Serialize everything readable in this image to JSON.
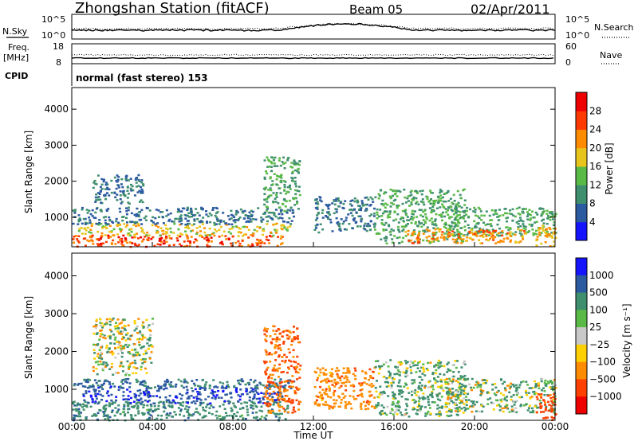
{
  "header": {
    "station": "Zhongshan Station (fitACF)",
    "beam": "Beam 05",
    "date": "02/Apr/2011"
  },
  "top_panels": {
    "nsky_label": "N.Sky",
    "nsky_ticks": [
      "10^5",
      "10^0"
    ],
    "nsearch_label": "N.Search",
    "nsearch_ticks": [
      "10^5",
      "10^0"
    ],
    "freq_label": "Freq.",
    "freq_unit": "[MHz]",
    "freq_ticks": [
      "18",
      "8"
    ],
    "nave_label": "Nave",
    "nave_ticks": [
      "60",
      "0"
    ],
    "cpid_label": "CPID",
    "cpid_text": "normal (fast stereo) 153"
  },
  "chart_data": [
    {
      "type": "heatmap",
      "name": "power",
      "ylabel": "Slant Range [km]",
      "colorbar_label": "Power [dB]",
      "yticks": [
        "4000",
        "3000",
        "2000",
        "1000"
      ],
      "ylim": [
        180,
        4600
      ],
      "xticks": [
        "00:00",
        "04:00",
        "08:00",
        "12:00",
        "16:00",
        "20:00",
        "00:00"
      ],
      "xlim_hours": [
        0,
        24
      ],
      "colorbar_ticks": [
        "28",
        "24",
        "20",
        "16",
        "12",
        "8",
        "4"
      ],
      "colorbar_range": [
        0,
        32
      ],
      "colors": [
        "#1414ff",
        "#2c5aa0",
        "#3f8f6f",
        "#5aba46",
        "#e8c51c",
        "#ff8c00",
        "#ff3a00",
        "#ee0000"
      ],
      "echo_regions": [
        {
          "x0": 0.0,
          "x1": 10.5,
          "y0": 200,
          "y1": 520,
          "v": 26
        },
        {
          "x0": 0.3,
          "x1": 10.8,
          "y0": 500,
          "y1": 850,
          "v": 18
        },
        {
          "x0": 0.0,
          "x1": 11.0,
          "y0": 820,
          "y1": 1300,
          "v": 8
        },
        {
          "x0": 1.0,
          "x1": 3.5,
          "y0": 1400,
          "y1": 2200,
          "v": 8
        },
        {
          "x0": 9.5,
          "x1": 11.3,
          "y0": 1200,
          "y1": 2700,
          "v": 12
        },
        {
          "x0": 12.0,
          "x1": 15.0,
          "y0": 600,
          "y1": 1600,
          "v": 8
        },
        {
          "x0": 15.0,
          "x1": 19.5,
          "y0": 300,
          "y1": 1800,
          "v": 12
        },
        {
          "x0": 18.5,
          "x1": 24.0,
          "y0": 500,
          "y1": 1300,
          "v": 12
        },
        {
          "x0": 16.5,
          "x1": 22.5,
          "y0": 300,
          "y1": 700,
          "v": 22
        },
        {
          "x0": 23.0,
          "x1": 24.0,
          "y0": 200,
          "y1": 800,
          "v": 20
        }
      ]
    },
    {
      "type": "heatmap",
      "name": "velocity",
      "ylabel": "Slant Range [km]",
      "colorbar_label": "Velocity [m s⁻¹]",
      "yticks": [
        "4000",
        "3000",
        "2000",
        "1000"
      ],
      "ylim": [
        180,
        4600
      ],
      "xticks": [
        "00:00",
        "04:00",
        "08:00",
        "12:00",
        "16:00",
        "20:00",
        "00:00"
      ],
      "xlabel": "Time UT",
      "xlim_hours": [
        0,
        24
      ],
      "colorbar_ticks": [
        "1000",
        "500",
        "100",
        "25",
        "−25",
        "−100",
        "−500",
        "−1000"
      ],
      "colors": [
        "#1414ff",
        "#2c5aa0",
        "#3f8f6f",
        "#5aba46",
        "#c8c8c8",
        "#ffd000",
        "#ff8c00",
        "#ff4000",
        "#ee0000"
      ],
      "echo_regions": [
        {
          "x0": 0.0,
          "x1": 10.8,
          "y0": 200,
          "y1": 700,
          "v": 200
        },
        {
          "x0": 0.5,
          "x1": 10.5,
          "y0": 650,
          "y1": 1100,
          "v": 700
        },
        {
          "x0": 0.0,
          "x1": 11.0,
          "y0": 1050,
          "y1": 1300,
          "v": 300
        },
        {
          "x0": 1.0,
          "x1": 4.0,
          "y0": 1400,
          "y1": 2900,
          "v": 0
        },
        {
          "x0": 9.5,
          "x1": 11.3,
          "y0": 400,
          "y1": 2700,
          "v": -300
        },
        {
          "x0": 12.0,
          "x1": 15.0,
          "y0": 500,
          "y1": 1600,
          "v": -200
        },
        {
          "x0": 15.0,
          "x1": 19.5,
          "y0": 300,
          "y1": 1800,
          "v": 80
        },
        {
          "x0": 18.5,
          "x1": 24.0,
          "y0": 400,
          "y1": 1300,
          "v": 40
        },
        {
          "x0": 23.0,
          "x1": 24.0,
          "y0": 200,
          "y1": 900,
          "v": -600
        }
      ]
    }
  ]
}
